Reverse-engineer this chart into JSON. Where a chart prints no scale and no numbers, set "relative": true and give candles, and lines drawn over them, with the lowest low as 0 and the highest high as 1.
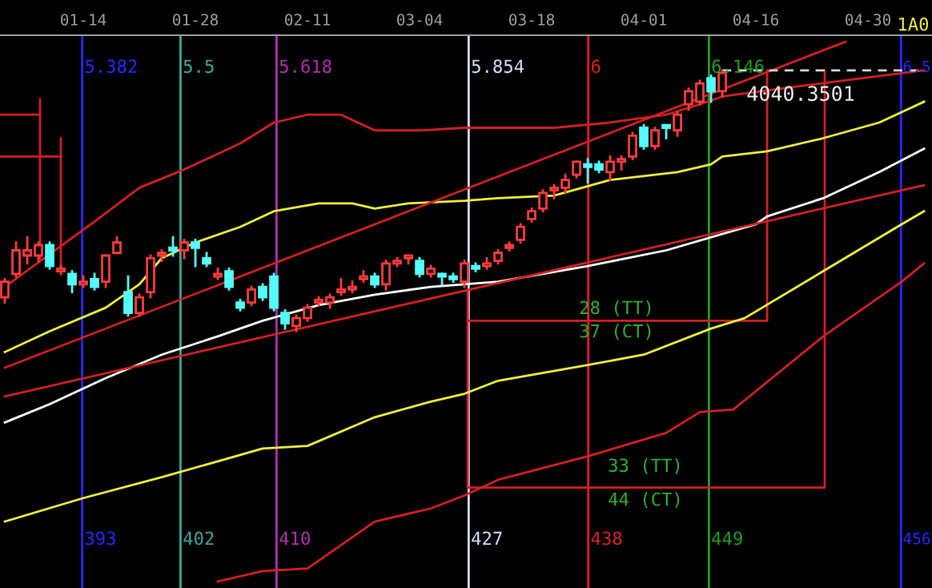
{
  "chart_data": {
    "type": "candlestick",
    "relative": true,
    "categories": [
      null,
      null,
      null,
      null,
      null,
      null,
      null,
      "01-14",
      null,
      null,
      null,
      null,
      null,
      null,
      null,
      null,
      null,
      "01-28",
      null,
      null,
      null,
      null,
      null,
      null,
      null,
      null,
      null,
      "02-11",
      null,
      null,
      null,
      null,
      null,
      null,
      null,
      null,
      null,
      "03-04",
      null,
      null,
      null,
      null,
      null,
      null,
      null,
      null,
      null,
      "03-18",
      null,
      null,
      null,
      null,
      null,
      null,
      null,
      null,
      null,
      "04-01",
      null,
      null,
      null,
      null,
      null,
      null,
      null,
      null,
      null,
      "04-16",
      null,
      null,
      null,
      null,
      null,
      null,
      null,
      null,
      null,
      "04-30",
      null,
      null,
      null,
      null,
      null
    ],
    "ohlc": [
      [
        0.13,
        0.2,
        0.11,
        0.19
      ],
      [
        0.22,
        0.34,
        0.21,
        0.31
      ],
      [
        0.29,
        0.36,
        0.26,
        0.31
      ],
      [
        0.29,
        0.34,
        0.27,
        0.33
      ],
      [
        0.33,
        0.34,
        0.24,
        0.25
      ],
      [
        0.23,
        0.25,
        0.22,
        0.24
      ],
      [
        0.22,
        0.23,
        0.15,
        0.18
      ],
      [
        0.18,
        0.21,
        0.17,
        0.19
      ],
      [
        0.2,
        0.22,
        0.16,
        0.17
      ],
      [
        0.19,
        0.29,
        0.17,
        0.29
      ],
      [
        0.3,
        0.36,
        0.3,
        0.34
      ],
      [
        0.15,
        0.21,
        0.06,
        0.07
      ],
      [
        0.07,
        0.14,
        0.06,
        0.13
      ],
      [
        0.15,
        0.29,
        0.13,
        0.28
      ],
      [
        0.29,
        0.31,
        0.27,
        0.3
      ],
      [
        0.32,
        0.36,
        0.29,
        0.31
      ],
      [
        0.31,
        0.35,
        0.28,
        0.34
      ],
      [
        0.34,
        0.35,
        0.25,
        0.32
      ],
      [
        0.28,
        0.3,
        0.25,
        0.26
      ],
      [
        0.21,
        0.24,
        0.2,
        0.22
      ],
      [
        0.23,
        0.24,
        0.16,
        0.17
      ],
      [
        0.11,
        0.12,
        0.08,
        0.09
      ],
      [
        0.11,
        0.17,
        0.1,
        0.16
      ],
      [
        0.17,
        0.18,
        0.12,
        0.13
      ],
      [
        0.21,
        0.22,
        0.08,
        0.09
      ],
      [
        0.07,
        0.08,
        0.01,
        0.03
      ],
      [
        0.02,
        0.06,
        0.0,
        0.05
      ],
      [
        0.05,
        0.1,
        0.04,
        0.09
      ],
      [
        0.11,
        0.13,
        0.1,
        0.12
      ],
      [
        0.11,
        0.14,
        0.09,
        0.13
      ],
      [
        0.15,
        0.2,
        0.14,
        0.16
      ],
      [
        0.16,
        0.19,
        0.15,
        0.17
      ],
      [
        0.2,
        0.23,
        0.19,
        0.21
      ],
      [
        0.21,
        0.22,
        0.17,
        0.18
      ],
      [
        0.18,
        0.27,
        0.16,
        0.26
      ],
      [
        0.26,
        0.28,
        0.25,
        0.27
      ],
      [
        0.28,
        0.29,
        0.26,
        0.29
      ],
      [
        0.27,
        0.28,
        0.21,
        0.22
      ],
      [
        0.22,
        0.25,
        0.21,
        0.24
      ],
      [
        0.22,
        0.22,
        0.18,
        0.21
      ],
      [
        0.21,
        0.22,
        0.19,
        0.2
      ],
      [
        0.19,
        0.27,
        0.17,
        0.26
      ],
      [
        0.25,
        0.26,
        0.23,
        0.24
      ],
      [
        0.25,
        0.28,
        0.24,
        0.26
      ],
      [
        0.27,
        0.31,
        0.26,
        0.3
      ],
      [
        0.32,
        0.34,
        0.31,
        0.33
      ],
      [
        0.35,
        0.41,
        0.34,
        0.4
      ],
      [
        0.43,
        0.47,
        0.42,
        0.46
      ],
      [
        0.47,
        0.54,
        0.46,
        0.53
      ],
      [
        0.54,
        0.56,
        0.51,
        0.55
      ],
      [
        0.55,
        0.6,
        0.53,
        0.58
      ],
      [
        0.6,
        0.65,
        0.59,
        0.65
      ],
      [
        0.64,
        0.66,
        0.57,
        0.63
      ],
      [
        0.64,
        0.65,
        0.61,
        0.62
      ],
      [
        0.61,
        0.67,
        0.58,
        0.65
      ],
      [
        0.65,
        0.67,
        0.62,
        0.66
      ],
      [
        0.67,
        0.76,
        0.66,
        0.75
      ],
      [
        0.78,
        0.79,
        0.7,
        0.71
      ],
      [
        0.71,
        0.78,
        0.7,
        0.77
      ],
      [
        0.79,
        0.79,
        0.74,
        0.78
      ],
      [
        0.77,
        0.84,
        0.75,
        0.83
      ],
      [
        0.87,
        0.93,
        0.85,
        0.92
      ],
      [
        0.88,
        0.96,
        0.87,
        0.95
      ],
      [
        0.97,
        0.98,
        0.88,
        0.92
      ],
      [
        0.92,
        1.0,
        0.9,
        0.99
      ],
      null,
      null,
      null,
      null,
      null,
      null,
      null,
      null,
      null,
      null,
      null,
      null,
      null,
      null,
      null,
      null,
      null,
      null
    ],
    "colors": [
      "#ff3c3c",
      "#ff3c3c",
      "#ff3c3c",
      "#ff3c3c",
      "#54fcfc",
      "#ff3c3c",
      "#54fcfc",
      "#ff3c3c",
      "#54fcfc",
      "#ff3c3c",
      "#ff3c3c",
      "#54fcfc",
      "#ff3c3c",
      "#ff3c3c",
      "#ff3c3c",
      "#54fcfc",
      "#ff3c3c",
      "#54fcfc",
      "#54fcfc",
      "#ff3c3c",
      "#54fcfc",
      "#54fcfc",
      "#ff3c3c",
      "#54fcfc",
      "#54fcfc",
      "#54fcfc",
      "#ff3c3c",
      "#ff3c3c",
      "#ff3c3c",
      "#ff3c3c",
      "#ff3c3c",
      "#ff3c3c",
      "#ff3c3c",
      "#54fcfc",
      "#ff3c3c",
      "#ff3c3c",
      "#ff3c3c",
      "#54fcfc",
      "#ff3c3c",
      "#54fcfc",
      "#54fcfc",
      "#ff3c3c",
      "#54fcfc",
      "#ff3c3c",
      "#ff3c3c",
      "#ff3c3c",
      "#ff3c3c",
      "#ff3c3c",
      "#ff3c3c",
      "#ff3c3c",
      "#ff3c3c",
      "#ff3c3c",
      "#54fcfc",
      "#54fcfc",
      "#ff3c3c",
      "#ff3c3c",
      "#ff3c3c",
      "#54fcfc",
      "#ff3c3c",
      "#54fcfc",
      "#ff3c3c",
      "#ff3c3c",
      "#ff3c3c",
      "#54fcfc",
      "#ff3c3c",
      null,
      null,
      null,
      null,
      null,
      null,
      null,
      null,
      null,
      null,
      null,
      null,
      null,
      null,
      null,
      null,
      null,
      null
    ],
    "series": [
      {
        "type": "line",
        "color": "#d42020",
        "values": [
          0.17,
          null,
          null,
          null,
          null,
          null,
          null,
          null,
          0.42,
          null,
          null,
          null,
          0.55,
          null,
          null,
          null,
          0.62,
          null,
          null,
          null,
          null,
          0.72,
          null,
          null,
          0.8,
          null,
          null,
          0.83,
          null,
          null,
          0.83,
          null,
          0.79,
          0.77,
          null,
          null,
          null,
          0.77,
          null,
          null,
          null,
          0.78,
          null,
          null,
          null,
          null,
          null,
          null,
          null,
          0.78,
          null,
          null,
          null,
          null,
          0.8,
          null,
          null,
          null,
          null,
          0.83,
          null,
          null,
          0.87,
          null,
          0.9,
          null,
          null,
          null,
          null,
          null,
          null,
          0.94,
          null,
          null,
          null,
          null,
          null,
          null,
          null,
          null,
          null,
          null,
          1.0
        ]
      },
      {
        "type": "line",
        "color": "#f0f040",
        "values": [
          -0.08,
          null,
          null,
          null,
          0.0,
          null,
          null,
          null,
          null,
          0.09,
          null,
          null,
          0.18,
          null,
          0.28,
          null,
          null,
          0.34,
          null,
          null,
          null,
          0.4,
          null,
          null,
          0.46,
          null,
          null,
          null,
          0.49,
          null,
          null,
          0.49,
          null,
          0.47,
          null,
          null,
          0.49,
          null,
          null,
          null,
          null,
          0.5,
          null,
          null,
          0.51,
          null,
          null,
          null,
          null,
          0.52,
          null,
          null,
          null,
          null,
          0.58,
          null,
          null,
          null,
          null,
          null,
          0.61,
          null,
          null,
          0.64,
          0.67,
          null,
          null,
          null,
          0.69,
          null,
          null,
          null,
          null,
          0.74,
          null,
          null,
          null,
          null,
          0.8,
          null,
          0.84,
          null,
          0.88
        ]
      },
      {
        "type": "line",
        "color": "#ffffff",
        "values": [
          -0.35,
          null,
          null,
          null,
          -0.28,
          null,
          null,
          null,
          null,
          -0.18,
          null,
          null,
          null,
          null,
          -0.09,
          null,
          null,
          null,
          null,
          -0.02,
          null,
          null,
          null,
          0.04,
          null,
          null,
          null,
          null,
          0.1,
          null,
          null,
          null,
          null,
          0.14,
          null,
          null,
          null,
          null,
          0.17,
          null,
          null,
          0.18,
          null,
          null,
          0.19,
          null,
          null,
          null,
          null,
          null,
          null,
          null,
          0.25,
          null,
          null,
          null,
          null,
          null,
          null,
          0.31,
          null,
          null,
          null,
          null,
          null,
          null,
          null,
          0.41,
          0.44,
          null,
          null,
          null,
          null,
          0.51,
          null,
          null,
          null,
          null,
          0.61,
          null,
          null,
          null,
          0.7
        ]
      },
      {
        "type": "line",
        "color": "#f0f040",
        "values": [
          -0.73,
          null,
          null,
          null,
          null,
          null,
          null,
          -0.64,
          null,
          null,
          null,
          null,
          null,
          null,
          -0.56,
          null,
          null,
          null,
          null,
          null,
          null,
          null,
          null,
          -0.45,
          null,
          null,
          null,
          -0.44,
          null,
          null,
          null,
          null,
          null,
          -0.33,
          null,
          null,
          null,
          null,
          -0.27,
          null,
          null,
          -0.24,
          null,
          null,
          -0.19,
          null,
          null,
          null,
          null,
          null,
          null,
          null,
          -0.13,
          null,
          null,
          null,
          null,
          -0.09,
          null,
          null,
          null,
          null,
          null,
          0.01,
          null,
          null,
          0.05,
          null,
          null,
          null,
          null,
          null,
          null,
          0.23,
          null,
          null,
          null,
          null,
          null,
          null,
          0.41,
          null,
          0.46
        ]
      },
      {
        "type": "line",
        "color": "#d42020",
        "values": [
          null,
          null,
          null,
          null,
          null,
          null,
          null,
          null,
          null,
          null,
          null,
          null,
          null,
          null,
          null,
          null,
          null,
          null,
          null,
          -0.96,
          null,
          null,
          null,
          -0.92,
          null,
          null,
          null,
          -0.91,
          null,
          null,
          null,
          null,
          null,
          -0.73,
          null,
          null,
          null,
          null,
          -0.68,
          null,
          null,
          -0.63,
          null,
          null,
          -0.57,
          null,
          null,
          null,
          null,
          null,
          null,
          null,
          -0.48,
          null,
          null,
          null,
          null,
          null,
          null,
          -0.39,
          null,
          null,
          -0.31,
          null,
          null,
          -0.3,
          null,
          null,
          null,
          null,
          null,
          null,
          null,
          -0.02,
          null,
          null,
          null,
          null,
          null,
          null,
          0.19,
          null,
          0.26
        ]
      },
      {
        "type": "line",
        "color": "#d42020",
        "values": [
          -0.14,
          null,
          null,
          null,
          null,
          null,
          null,
          null,
          null,
          null,
          null,
          null,
          null,
          null,
          null,
          null,
          null,
          null,
          null,
          null,
          null,
          null,
          null,
          null,
          null,
          null,
          null,
          null,
          null,
          null,
          null,
          null,
          null,
          null,
          null,
          null,
          null,
          null,
          null,
          null,
          null,
          null,
          null,
          null,
          null,
          null,
          null,
          null,
          null,
          null,
          null,
          null,
          null,
          null,
          null,
          null,
          null,
          null,
          null,
          null,
          null,
          null,
          null,
          null,
          null,
          null,
          null,
          null,
          null,
          null,
          null,
          null,
          null,
          null,
          null,
          1.11,
          null,
          null,
          null,
          null,
          null,
          null,
          null
        ]
      },
      {
        "type": "line",
        "color": "#d42020",
        "values": [
          -0.25,
          null,
          null,
          null,
          null,
          null,
          null,
          null,
          null,
          null,
          null,
          null,
          null,
          null,
          null,
          null,
          null,
          null,
          null,
          null,
          null,
          null,
          null,
          null,
          null,
          null,
          null,
          null,
          null,
          null,
          null,
          null,
          null,
          null,
          null,
          null,
          null,
          null,
          null,
          null,
          null,
          null,
          null,
          null,
          null,
          null,
          null,
          null,
          null,
          null,
          null,
          null,
          null,
          null,
          null,
          null,
          null,
          null,
          null,
          null,
          null,
          null,
          null,
          null,
          null,
          null,
          null,
          null,
          null,
          null,
          null,
          null,
          null,
          null,
          null,
          null,
          null,
          null,
          null,
          null,
          null,
          null,
          0.56
        ]
      },
      {
        "type": "line",
        "color": "#d8d8d8",
        "line_style": "dashed",
        "values": [
          null,
          null,
          null,
          null,
          null,
          null,
          null,
          null,
          null,
          null,
          null,
          null,
          null,
          null,
          null,
          null,
          null,
          null,
          null,
          null,
          null,
          null,
          null,
          null,
          null,
          null,
          null,
          null,
          null,
          null,
          null,
          null,
          null,
          null,
          null,
          null,
          null,
          null,
          null,
          null,
          null,
          null,
          null,
          null,
          null,
          null,
          null,
          null,
          null,
          null,
          null,
          null,
          null,
          null,
          null,
          null,
          null,
          null,
          null,
          null,
          null,
          null,
          null,
          null,
          1.0,
          null,
          null,
          null,
          null,
          null,
          null,
          null,
          null,
          null,
          null,
          null,
          null,
          null,
          null,
          null,
          null,
          null,
          1.0
        ]
      }
    ],
    "annotations": [
      "5.382",
      "5.5",
      "5.618",
      "5.854",
      "6",
      "6.146",
      "6.5",
      "393",
      "402",
      "410",
      "427",
      "438",
      "449",
      "456",
      "28 (TT)",
      "37 (CT)",
      "33 (TT)",
      "44 (CT)",
      "4040.3501",
      "1A0"
    ]
  }
}
